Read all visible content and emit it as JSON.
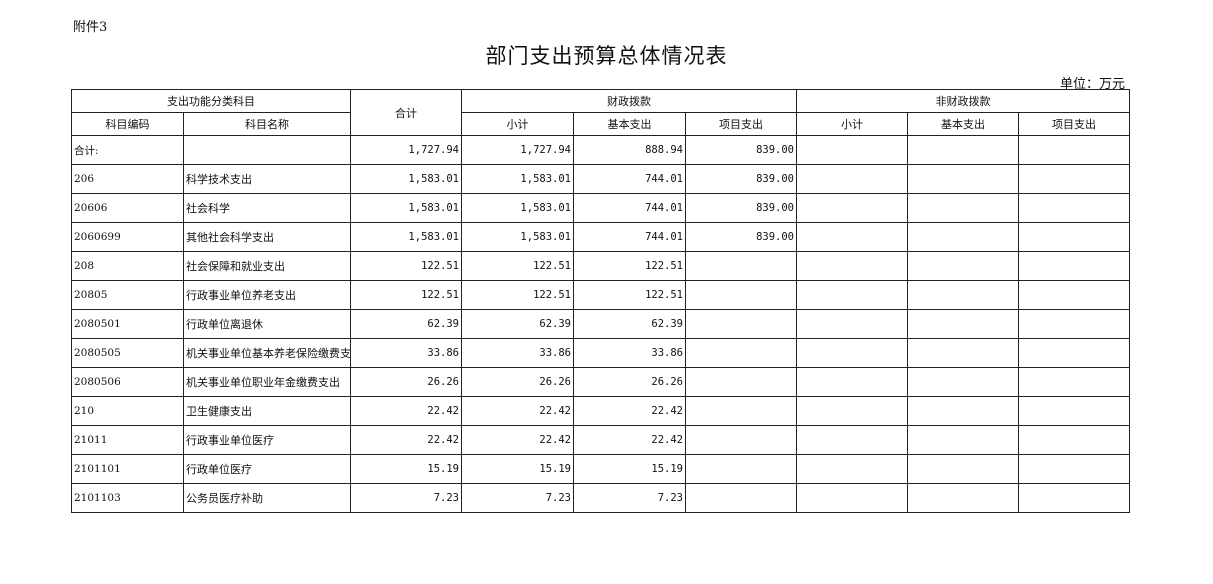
{
  "attachment_label": "附件3",
  "title": "部门支出预算总体情况表",
  "unit": "单位：万元",
  "headers": {
    "function_group": "支出功能分类科目",
    "code": "科目编码",
    "name": "科目名称",
    "total": "合计",
    "fiscal_group": "财政拨款",
    "nonfiscal_group": "非财政拨款",
    "subtotal": "小计",
    "basic": "基本支出",
    "project": "项目支出"
  },
  "rows": [
    {
      "code": "合计:",
      "name": "",
      "total": "1,727.94",
      "f_sub": "1,727.94",
      "f_basic": "888.94",
      "f_proj": "839.00",
      "n_sub": "",
      "n_basic": "",
      "n_proj": ""
    },
    {
      "code": "206",
      "name": "科学技术支出",
      "total": "1,583.01",
      "f_sub": "1,583.01",
      "f_basic": "744.01",
      "f_proj": "839.00",
      "n_sub": "",
      "n_basic": "",
      "n_proj": ""
    },
    {
      "code": "20606",
      "name": "社会科学",
      "total": "1,583.01",
      "f_sub": "1,583.01",
      "f_basic": "744.01",
      "f_proj": "839.00",
      "n_sub": "",
      "n_basic": "",
      "n_proj": ""
    },
    {
      "code": "2060699",
      "name": "其他社会科学支出",
      "total": "1,583.01",
      "f_sub": "1,583.01",
      "f_basic": "744.01",
      "f_proj": "839.00",
      "n_sub": "",
      "n_basic": "",
      "n_proj": ""
    },
    {
      "code": "208",
      "name": "社会保障和就业支出",
      "total": "122.51",
      "f_sub": "122.51",
      "f_basic": "122.51",
      "f_proj": "",
      "n_sub": "",
      "n_basic": "",
      "n_proj": ""
    },
    {
      "code": "20805",
      "name": "行政事业单位养老支出",
      "total": "122.51",
      "f_sub": "122.51",
      "f_basic": "122.51",
      "f_proj": "",
      "n_sub": "",
      "n_basic": "",
      "n_proj": ""
    },
    {
      "code": "2080501",
      "name": "行政单位离退休",
      "total": "62.39",
      "f_sub": "62.39",
      "f_basic": "62.39",
      "f_proj": "",
      "n_sub": "",
      "n_basic": "",
      "n_proj": ""
    },
    {
      "code": "2080505",
      "name": "机关事业单位基本养老保险缴费支出",
      "total": "33.86",
      "f_sub": "33.86",
      "f_basic": "33.86",
      "f_proj": "",
      "n_sub": "",
      "n_basic": "",
      "n_proj": ""
    },
    {
      "code": "2080506",
      "name": "机关事业单位职业年金缴费支出",
      "total": "26.26",
      "f_sub": "26.26",
      "f_basic": "26.26",
      "f_proj": "",
      "n_sub": "",
      "n_basic": "",
      "n_proj": ""
    },
    {
      "code": "210",
      "name": "卫生健康支出",
      "total": "22.42",
      "f_sub": "22.42",
      "f_basic": "22.42",
      "f_proj": "",
      "n_sub": "",
      "n_basic": "",
      "n_proj": ""
    },
    {
      "code": "21011",
      "name": "行政事业单位医疗",
      "total": "22.42",
      "f_sub": "22.42",
      "f_basic": "22.42",
      "f_proj": "",
      "n_sub": "",
      "n_basic": "",
      "n_proj": ""
    },
    {
      "code": "2101101",
      "name": "行政单位医疗",
      "total": "15.19",
      "f_sub": "15.19",
      "f_basic": "15.19",
      "f_proj": "",
      "n_sub": "",
      "n_basic": "",
      "n_proj": ""
    },
    {
      "code": "2101103",
      "name": "公务员医疗补助",
      "total": "7.23",
      "f_sub": "7.23",
      "f_basic": "7.23",
      "f_proj": "",
      "n_sub": "",
      "n_basic": "",
      "n_proj": ""
    }
  ]
}
